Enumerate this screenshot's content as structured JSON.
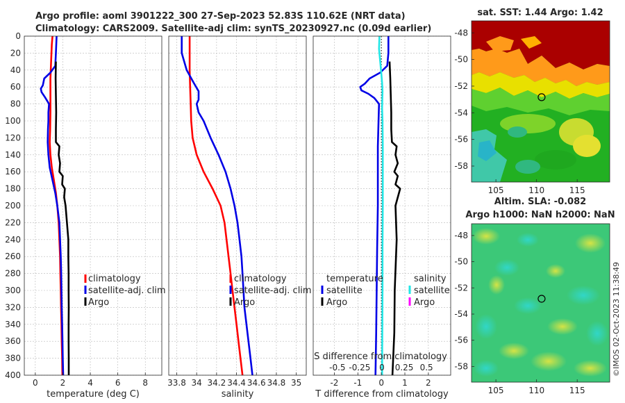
{
  "header": {
    "line1": "Argo profile: aoml 3901222_300 27-Sep-2023 52.83S 110.62E (NRT data)",
    "line2": "Climatology: CARS2009. Satellite-adj clim: synTS_20230927.nc (0.09d earlier)"
  },
  "colors": {
    "red": "#ff0000",
    "blue": "#0000e6",
    "black": "#000000",
    "cyan": "#22e6e6",
    "magenta": "#ff00ff"
  },
  "depth_axis": {
    "ylim": [
      0,
      400
    ],
    "ticks": [
      0,
      20,
      40,
      60,
      80,
      100,
      120,
      140,
      160,
      180,
      200,
      220,
      240,
      260,
      280,
      300,
      320,
      340,
      360,
      380,
      400
    ]
  },
  "chart_data": [
    {
      "type": "line",
      "panel": "temperature",
      "xlabel": "temperature (deg C)",
      "xlim": [
        -0.8,
        9.2
      ],
      "xticks": [
        0,
        2,
        4,
        6,
        8
      ],
      "xtick_labels": [
        "0",
        "2",
        "4",
        "6",
        "8"
      ],
      "legend": [
        "climatology",
        "satellite-adj. clim",
        "Argo"
      ],
      "series": [
        {
          "name": "climatology",
          "color": "#ff0000",
          "depth": [
            0,
            10,
            30,
            50,
            70,
            90,
            110,
            125,
            140,
            155,
            170,
            185,
            200,
            220,
            240,
            260,
            280,
            300,
            320,
            340,
            360,
            380,
            400
          ],
          "values": [
            1.25,
            1.2,
            1.15,
            1.1,
            1.1,
            1.1,
            1.08,
            1.05,
            1.1,
            1.2,
            1.35,
            1.5,
            1.6,
            1.7,
            1.75,
            1.8,
            1.82,
            1.85,
            1.87,
            1.9,
            1.92,
            1.95,
            1.97
          ]
        },
        {
          "name": "satellite-adj. clim",
          "color": "#0000e6",
          "depth": [
            0,
            20,
            35,
            43,
            50,
            58,
            62,
            66,
            72,
            80,
            90,
            100,
            110,
            125,
            140,
            155,
            170,
            185,
            200,
            220,
            240,
            260,
            280,
            300,
            320,
            340,
            360,
            380,
            400
          ],
          "values": [
            1.55,
            1.5,
            1.45,
            1.1,
            0.65,
            0.55,
            0.4,
            0.45,
            0.7,
            1.0,
            0.95,
            0.95,
            0.92,
            0.9,
            0.95,
            1.05,
            1.25,
            1.45,
            1.6,
            1.75,
            1.8,
            1.85,
            1.88,
            1.9,
            1.92,
            1.95,
            1.98,
            2.0,
            2.03
          ]
        },
        {
          "name": "Argo",
          "color": "#000000",
          "depth": [
            30,
            50,
            70,
            90,
            110,
            125,
            130,
            140,
            150,
            160,
            165,
            175,
            180,
            190,
            200,
            210,
            220,
            230,
            240,
            260,
            280,
            300,
            320,
            340,
            360,
            380,
            400
          ],
          "values": [
            1.5,
            1.48,
            1.5,
            1.52,
            1.5,
            1.5,
            1.75,
            1.7,
            1.8,
            1.75,
            2.0,
            1.95,
            2.15,
            2.1,
            2.2,
            2.25,
            2.3,
            2.35,
            2.4,
            2.4,
            2.42,
            2.42,
            2.43,
            2.42,
            2.42,
            2.43,
            2.43
          ]
        }
      ]
    },
    {
      "type": "line",
      "panel": "salinity",
      "xlabel": "salinity",
      "xlim": [
        33.72,
        35.1
      ],
      "xticks": [
        33.8,
        34,
        34.2,
        34.4,
        34.6,
        34.8,
        35
      ],
      "xtick_labels": [
        "33.8",
        "34",
        "34.2",
        "34.4",
        "34.6",
        "34.8",
        "35"
      ],
      "legend": [
        "climatology",
        "satellite-adj. clim",
        "Argo"
      ],
      "series": [
        {
          "name": "climatology",
          "color": "#ff0000",
          "depth": [
            0,
            20,
            40,
            60,
            80,
            100,
            120,
            140,
            160,
            180,
            200,
            220,
            240,
            260,
            280,
            300,
            320,
            340,
            360,
            380,
            400
          ],
          "values": [
            33.93,
            33.93,
            33.93,
            33.935,
            33.94,
            33.945,
            33.96,
            34.0,
            34.07,
            34.16,
            34.24,
            34.28,
            34.3,
            34.32,
            34.34,
            34.36,
            34.38,
            34.4,
            34.42,
            34.44,
            34.46
          ]
        },
        {
          "name": "satellite-adj. clim",
          "color": "#0000e6",
          "depth": [
            0,
            20,
            40,
            55,
            65,
            75,
            80,
            90,
            100,
            120,
            140,
            160,
            180,
            200,
            220,
            240,
            260,
            280,
            300,
            320,
            340,
            360,
            380,
            400
          ],
          "values": [
            33.85,
            33.85,
            33.9,
            33.97,
            34.02,
            34.02,
            34.0,
            34.02,
            34.07,
            34.14,
            34.22,
            34.29,
            34.34,
            34.38,
            34.41,
            34.43,
            34.45,
            34.46,
            34.47,
            34.48,
            34.5,
            34.52,
            34.54,
            34.56
          ]
        }
      ]
    },
    {
      "type": "line",
      "panel": "difference",
      "xlabel": "T difference from climatology",
      "xlim": [
        -2.9,
        2.95
      ],
      "xticks": [
        -2,
        -1,
        0,
        1,
        2
      ],
      "xtick_labels": [
        "-2",
        "-1",
        "0",
        "1",
        "2"
      ],
      "top_label": "S difference from climatology",
      "top_ticks": [
        -0.5,
        -0.25,
        0,
        0.25,
        0.5
      ],
      "top_tick_labels": [
        "-0.5",
        "-0.25",
        "0",
        "0.25",
        "0.5"
      ],
      "legend_temperature": {
        "title": "temperature",
        "items": [
          "satellite",
          "Argo"
        ]
      },
      "legend_salinity": {
        "title": "salinity",
        "items": [
          "satellite",
          "Argo"
        ]
      },
      "series": [
        {
          "name": "T satellite - clim",
          "color": "#0000e6",
          "depth": [
            0,
            20,
            35,
            43,
            50,
            56,
            60,
            64,
            68,
            73,
            80,
            100,
            130,
            160,
            200,
            250,
            300,
            350,
            400
          ],
          "values": [
            0.3,
            0.3,
            0.25,
            -0.05,
            -0.5,
            -0.7,
            -0.9,
            -0.85,
            -0.55,
            -0.3,
            -0.1,
            -0.12,
            -0.15,
            -0.15,
            -0.15,
            -0.18,
            -0.2,
            -0.22,
            -0.25
          ]
        },
        {
          "name": "T Argo - clim",
          "color": "#000000",
          "depth": [
            30,
            50,
            70,
            90,
            110,
            125,
            130,
            140,
            150,
            160,
            165,
            175,
            180,
            200,
            240,
            300,
            350,
            400
          ],
          "values": [
            0.35,
            0.38,
            0.4,
            0.42,
            0.42,
            0.45,
            0.65,
            0.6,
            0.7,
            0.55,
            0.7,
            0.6,
            0.8,
            0.6,
            0.65,
            0.57,
            0.55,
            0.47
          ]
        },
        {
          "name": "S satellite - clim",
          "color": "#22e6e6",
          "depth": [
            0,
            15,
            30,
            45,
            55,
            65,
            75,
            85,
            100,
            130,
            160,
            200,
            250,
            300,
            350,
            400
          ],
          "values": [
            -0.08,
            -0.1,
            -0.05,
            0.0,
            0.03,
            0.05,
            0.04,
            0.03,
            0.05,
            0.06,
            0.06,
            0.06,
            0.05,
            0.05,
            0.04,
            0.03
          ]
        }
      ]
    },
    {
      "type": "heatmap",
      "panel": "sst_map",
      "title": "sat. SST: 1.44 Argo: 1.42",
      "xlim": [
        102,
        119
      ],
      "ylim": [
        -59.2,
        -47.1
      ],
      "xticks": [
        105,
        110,
        115
      ],
      "xtick_labels": [
        "105",
        "110",
        "115"
      ],
      "yticks": [
        -48,
        -50,
        -52,
        -54,
        -56,
        -58
      ],
      "ytick_labels": [
        "-48",
        "-50",
        "-52",
        "-54",
        "-56",
        "-58"
      ],
      "marker": {
        "lon": 110.62,
        "lat": -52.83
      }
    },
    {
      "type": "heatmap",
      "panel": "sla_map",
      "title": "Altim. SLA: -0.082",
      "subtitle": "Argo h1000: NaN h2000: NaN",
      "xlim": [
        102,
        119
      ],
      "ylim": [
        -59.2,
        -47.1
      ],
      "xticks": [
        105,
        110,
        115
      ],
      "xtick_labels": [
        "105",
        "110",
        "115"
      ],
      "yticks": [
        -48,
        -50,
        -52,
        -54,
        -56,
        -58
      ],
      "ytick_labels": [
        "-48",
        "-50",
        "-52",
        "-54",
        "-56",
        "-58"
      ],
      "marker": {
        "lon": 110.62,
        "lat": -52.83
      }
    }
  ],
  "timestamp": "©IMOS 02-Oct-2023 11:38:49"
}
